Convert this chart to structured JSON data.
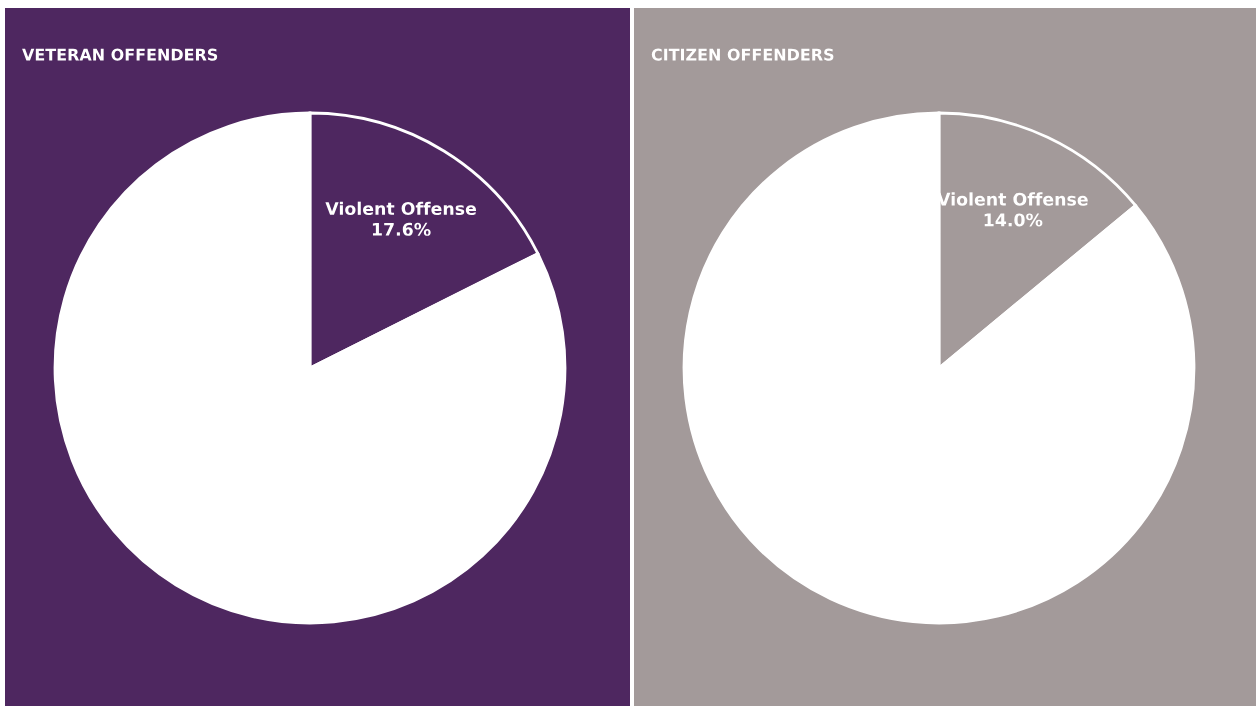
{
  "chart_data": [
    {
      "type": "pie",
      "title": "VETERAN OFFENDERS",
      "categories": [
        "Violent Offense",
        null
      ],
      "values": [
        17.6,
        82.4
      ],
      "colors": [
        "#4e2760",
        "#ffffff"
      ],
      "value_labels": [
        "17.6%",
        null
      ],
      "legend": false
    },
    {
      "type": "pie",
      "title": "CITIZEN OFFENDERS",
      "categories": [
        "Violent Offense",
        null
      ],
      "values": [
        14.0,
        86.0
      ],
      "colors": [
        "#a39a9a",
        "#ffffff"
      ],
      "value_labels": [
        "14.0%",
        null
      ],
      "legend": false
    }
  ]
}
